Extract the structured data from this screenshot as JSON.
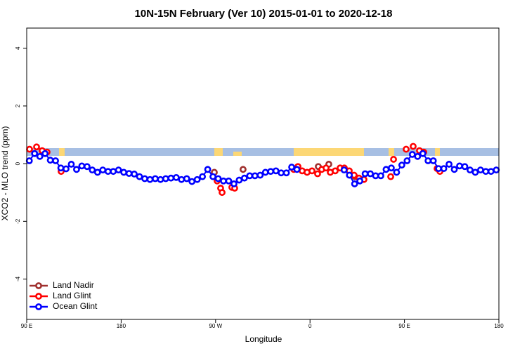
{
  "chart_data": {
    "type": "scatter",
    "title": "10N-15N February (Ver 10)   2015-01-01 to 2020-12-18",
    "xlabel": "Longitude",
    "ylabel": "XCO2 - MLO trend (ppm)",
    "xlim": [
      90,
      540
    ],
    "ylim": [
      -5.4,
      4.7
    ],
    "xticks": [
      {
        "value": 90,
        "label": "90 E"
      },
      {
        "value": 180,
        "label": "180"
      },
      {
        "value": 270,
        "label": "90 W"
      },
      {
        "value": 360,
        "label": "0"
      },
      {
        "value": 450,
        "label": "90 E"
      },
      {
        "value": 540,
        "label": "180"
      }
    ],
    "yticks": [
      -4,
      -2,
      0,
      2,
      4
    ],
    "legend": "bottom-left",
    "series": [
      {
        "name": "Land Nadir",
        "color": "#a0302e",
        "line": false,
        "x": [
          268.8,
          296.2,
          367.9,
          377.9,
          388.7,
          402.7
        ],
        "values": [
          -0.3,
          -0.2,
          -0.1,
          -0.02,
          -0.15,
          -0.45
        ]
      },
      {
        "name": "Land Glint",
        "color": "#ff0000",
        "line": false,
        "x": [
          92.7,
          99.4,
          104.7,
          109.4,
          122.8,
          271.5,
          274.8,
          276.2,
          285.5,
          288.2,
          344.5,
          348.5,
          352.5,
          357.2,
          361.9,
          367.2,
          371.2,
          375.3,
          379.3,
          384,
          388.7,
          392.7,
          397.4,
          402,
          406.7,
          411.4,
          436.9,
          439.6,
          451.6,
          458.3,
          464.3,
          468.4,
          481.1,
          483.8
        ],
        "values": [
          0.5,
          0.58,
          0.45,
          0.4,
          -0.27,
          -0.6,
          -0.85,
          -1.0,
          -0.82,
          -0.85,
          -0.2,
          -0.1,
          -0.25,
          -0.3,
          -0.25,
          -0.35,
          -0.2,
          -0.15,
          -0.3,
          -0.25,
          -0.15,
          -0.15,
          -0.25,
          -0.4,
          -0.5,
          -0.55,
          -0.45,
          0.15,
          0.5,
          0.6,
          0.45,
          0.4,
          -0.17,
          -0.27
        ]
      },
      {
        "name": "Ocean Glint",
        "color": "#0000ff",
        "line": true,
        "x": [
          92.5,
          97.5,
          102.5,
          107.5,
          112.5,
          117.5,
          122.5,
          127.5,
          132.5,
          137.5,
          142.5,
          147.5,
          152.5,
          157.5,
          162.5,
          167.5,
          172.5,
          177.5,
          182.5,
          187.5,
          192.5,
          197.5,
          202.5,
          207.5,
          212.5,
          217.5,
          222.5,
          227.5,
          232.5,
          237.5,
          242.5,
          247.5,
          252.5,
          257.5,
          262.5,
          267.5,
          272.5,
          277.5,
          282.5,
          287.5,
          292.5,
          297.5,
          302.5,
          307.5,
          312.5,
          317.5,
          322.5,
          327.5,
          332.5,
          337.5,
          342.5,
          347.5,
          352.5,
          357.5,
          362.5,
          367.5,
          372.5,
          377.5,
          382.5,
          387.5,
          392.5,
          397.5,
          402.5,
          407.5,
          412.5,
          417.5,
          422.5,
          427.5,
          432.5,
          437.5,
          442.5,
          447.5,
          452.5,
          457.5,
          462.5,
          467.5,
          472.5,
          477.5,
          482.5,
          487.5,
          492.5,
          497.5,
          502.5,
          507.5,
          512.5,
          517.5,
          522.5,
          527.5,
          532.5,
          537.5
        ],
        "values": [
          0.1,
          0.35,
          0.25,
          0.35,
          0.12,
          0.1,
          -0.15,
          -0.18,
          -0.02,
          -0.2,
          -0.08,
          -0.1,
          -0.22,
          -0.3,
          -0.22,
          -0.27,
          -0.27,
          -0.22,
          -0.3,
          -0.34,
          -0.36,
          -0.45,
          -0.52,
          -0.55,
          -0.52,
          -0.55,
          -0.52,
          -0.5,
          -0.48,
          -0.55,
          -0.52,
          -0.62,
          -0.55,
          -0.45,
          -0.2,
          -0.45,
          -0.52,
          -0.6,
          -0.6,
          -0.7,
          -0.57,
          -0.5,
          -0.42,
          -0.42,
          -0.4,
          -0.3,
          -0.27,
          -0.25,
          -0.32,
          -0.32,
          -0.12,
          -0.2,
          null,
          null,
          null,
          null,
          null,
          null,
          null,
          null,
          -0.22,
          -0.4,
          -0.7,
          -0.6,
          -0.35,
          -0.35,
          -0.42,
          -0.42,
          -0.2,
          -0.15,
          -0.3,
          -0.05,
          0.1,
          0.32,
          0.25,
          0.35,
          0.1,
          0.1,
          -0.17,
          -0.17,
          -0.02,
          -0.2,
          -0.08,
          -0.1,
          -0.22,
          -0.3,
          -0.22,
          -0.27,
          -0.27,
          -0.22
        ]
      }
    ]
  }
}
